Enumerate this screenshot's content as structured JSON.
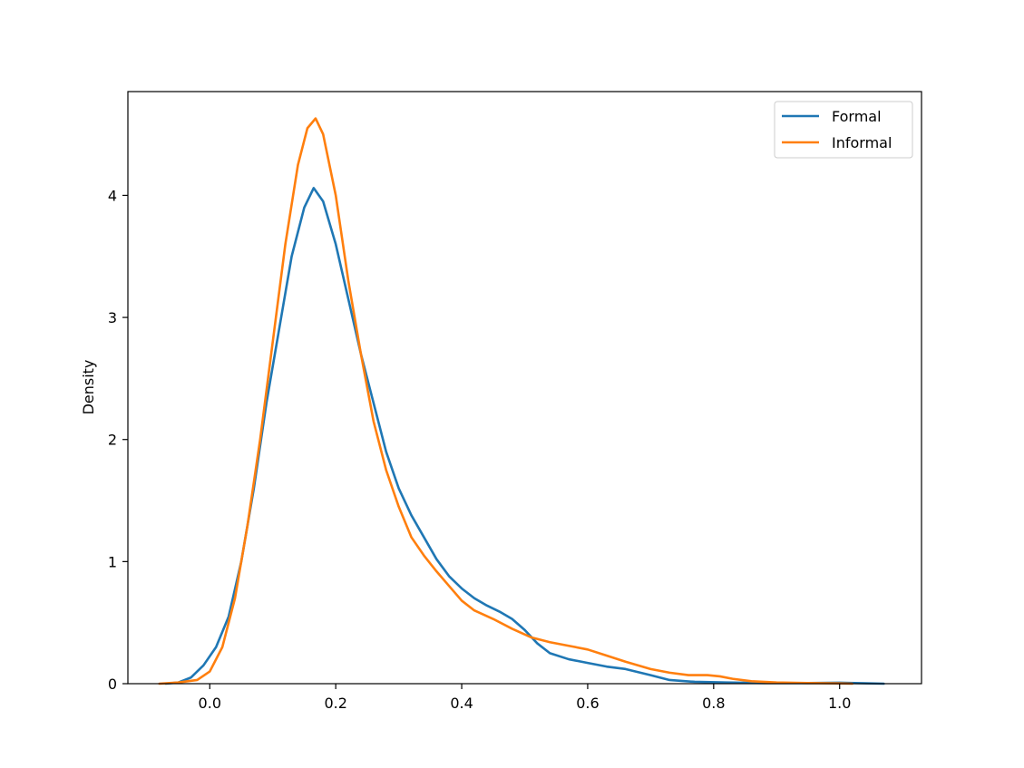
{
  "chart_data": {
    "type": "line",
    "title": "",
    "xlabel": "",
    "ylabel": "Density",
    "xlim": [
      -0.13,
      1.13
    ],
    "ylim": [
      0,
      4.85
    ],
    "x_ticks": [
      "0.0",
      "0.2",
      "0.4",
      "0.6",
      "0.8",
      "1.0"
    ],
    "y_ticks": [
      "0",
      "1",
      "2",
      "3",
      "4"
    ],
    "grid": false,
    "legend_position": "top-right",
    "series": [
      {
        "name": "Formal",
        "color": "#1f77b4",
        "points": [
          [
            -0.07,
            0.0
          ],
          [
            -0.05,
            0.01
          ],
          [
            -0.03,
            0.05
          ],
          [
            -0.01,
            0.15
          ],
          [
            0.01,
            0.3
          ],
          [
            0.03,
            0.55
          ],
          [
            0.05,
            1.0
          ],
          [
            0.07,
            1.6
          ],
          [
            0.09,
            2.3
          ],
          [
            0.11,
            2.9
          ],
          [
            0.13,
            3.5
          ],
          [
            0.15,
            3.9
          ],
          [
            0.165,
            4.06
          ],
          [
            0.18,
            3.95
          ],
          [
            0.2,
            3.6
          ],
          [
            0.22,
            3.15
          ],
          [
            0.24,
            2.7
          ],
          [
            0.26,
            2.3
          ],
          [
            0.28,
            1.9
          ],
          [
            0.3,
            1.6
          ],
          [
            0.32,
            1.38
          ],
          [
            0.34,
            1.2
          ],
          [
            0.36,
            1.02
          ],
          [
            0.38,
            0.88
          ],
          [
            0.4,
            0.78
          ],
          [
            0.42,
            0.7
          ],
          [
            0.44,
            0.64
          ],
          [
            0.46,
            0.59
          ],
          [
            0.48,
            0.53
          ],
          [
            0.5,
            0.44
          ],
          [
            0.52,
            0.33
          ],
          [
            0.54,
            0.25
          ],
          [
            0.57,
            0.2
          ],
          [
            0.6,
            0.17
          ],
          [
            0.63,
            0.14
          ],
          [
            0.66,
            0.12
          ],
          [
            0.7,
            0.07
          ],
          [
            0.73,
            0.03
          ],
          [
            0.77,
            0.015
          ],
          [
            0.82,
            0.01
          ],
          [
            0.88,
            0.005
          ],
          [
            0.95,
            0.005
          ],
          [
            1.0,
            0.008
          ],
          [
            1.04,
            0.003
          ],
          [
            1.07,
            0.0
          ]
        ]
      },
      {
        "name": "Informal",
        "color": "#ff7f0e",
        "points": [
          [
            -0.08,
            0.0
          ],
          [
            -0.05,
            0.01
          ],
          [
            -0.02,
            0.03
          ],
          [
            0.0,
            0.1
          ],
          [
            0.02,
            0.3
          ],
          [
            0.04,
            0.7
          ],
          [
            0.06,
            1.3
          ],
          [
            0.08,
            2.0
          ],
          [
            0.1,
            2.8
          ],
          [
            0.12,
            3.6
          ],
          [
            0.14,
            4.25
          ],
          [
            0.155,
            4.55
          ],
          [
            0.168,
            4.63
          ],
          [
            0.18,
            4.5
          ],
          [
            0.2,
            4.0
          ],
          [
            0.22,
            3.3
          ],
          [
            0.24,
            2.7
          ],
          [
            0.26,
            2.15
          ],
          [
            0.28,
            1.75
          ],
          [
            0.3,
            1.45
          ],
          [
            0.32,
            1.2
          ],
          [
            0.34,
            1.05
          ],
          [
            0.36,
            0.92
          ],
          [
            0.38,
            0.8
          ],
          [
            0.4,
            0.68
          ],
          [
            0.42,
            0.6
          ],
          [
            0.45,
            0.53
          ],
          [
            0.48,
            0.45
          ],
          [
            0.51,
            0.38
          ],
          [
            0.54,
            0.34
          ],
          [
            0.57,
            0.31
          ],
          [
            0.6,
            0.28
          ],
          [
            0.63,
            0.23
          ],
          [
            0.66,
            0.18
          ],
          [
            0.7,
            0.12
          ],
          [
            0.73,
            0.09
          ],
          [
            0.76,
            0.07
          ],
          [
            0.79,
            0.07
          ],
          [
            0.81,
            0.06
          ],
          [
            0.83,
            0.04
          ],
          [
            0.86,
            0.02
          ],
          [
            0.9,
            0.01
          ],
          [
            0.95,
            0.005
          ],
          [
            1.0,
            0.002
          ],
          [
            1.02,
            0.0
          ]
        ]
      }
    ]
  }
}
